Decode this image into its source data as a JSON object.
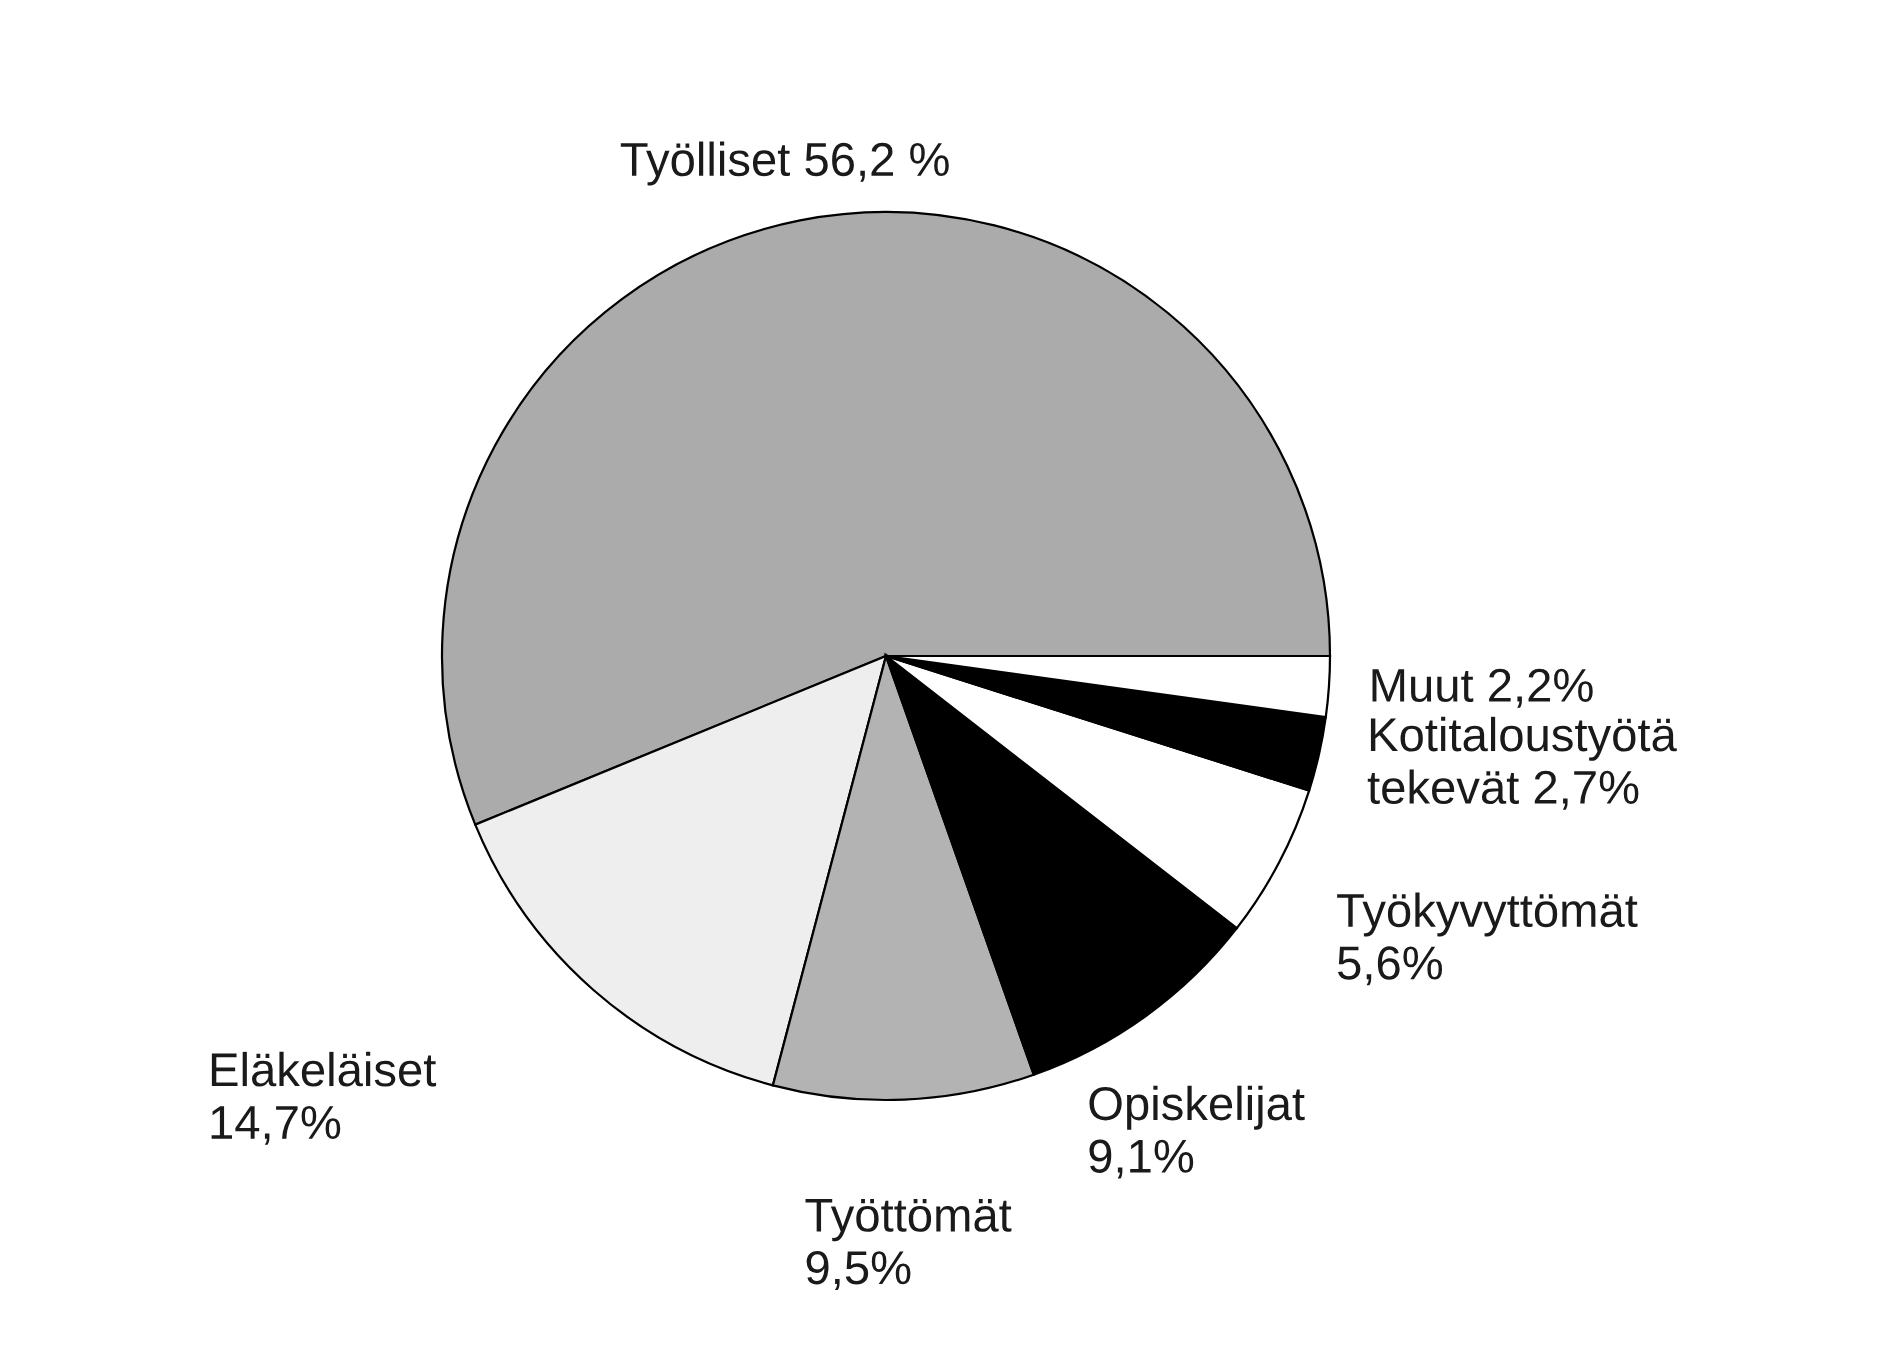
{
  "chart_data": {
    "type": "pie",
    "categories": [
      "Työlliset",
      "Eläkeläiset",
      "Työttömät",
      "Opiskelijat",
      "Työkyvyttömät",
      "Kotitaloustyötä tekevät",
      "Muut"
    ],
    "values": [
      56.2,
      14.7,
      9.5,
      9.1,
      5.6,
      2.7,
      2.2
    ],
    "value_labels": [
      "56,2 %",
      "14,7%",
      "9,5%",
      "9,1%",
      "5,6%",
      "2,7%",
      "2,2%"
    ],
    "colors": [
      "#ababab",
      "#eeeeee",
      "#b3b3b3",
      "#000000",
      "#ffffff",
      "#000000",
      "#ffffff"
    ]
  }
}
